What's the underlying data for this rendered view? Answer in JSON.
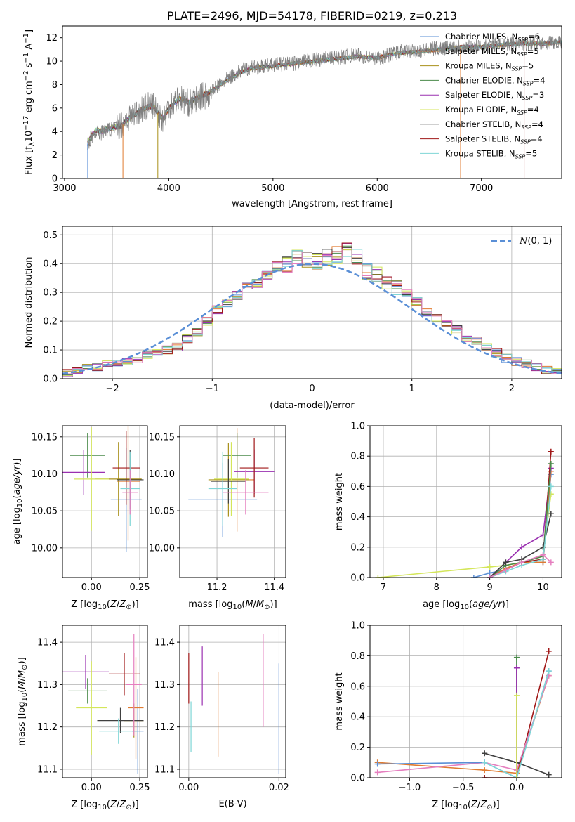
{
  "chart_data": [
    {
      "id": "spectrum",
      "type": "line",
      "title": "PLATE=2496, MJD=54178, FIBERID=0219, z=0.213",
      "xlabel": "wavelength [Angstrom, rest frame]",
      "ylabel": "Flux [f_λ 10^-17 erg cm^-2 s^-1 A^-1]",
      "ylabel_parts": [
        "Flux [f",
        "λ",
        "10",
        "−17",
        " erg cm",
        "−2",
        " s",
        "−1",
        " A",
        "−1",
        "]"
      ],
      "xlim": [
        2980,
        7770
      ],
      "ylim": [
        0,
        13
      ],
      "xticks": [
        3000,
        4000,
        5000,
        6000,
        7000
      ],
      "yticks": [
        0,
        2,
        4,
        6,
        8,
        10,
        12
      ],
      "legend_position": "upper-right",
      "series": [
        {
          "name": "Chabrier MILES",
          "nssp": "6",
          "color": "#5a8fd6"
        },
        {
          "name": "Salpeter MILES",
          "nssp": "5",
          "color": "#e07b30"
        },
        {
          "name": "Kroupa MILES",
          "nssp": "5",
          "color": "#a8901a"
        },
        {
          "name": "Chabrier ELODIE",
          "nssp": "4",
          "color": "#4a8a4a"
        },
        {
          "name": "Salpeter ELODIE",
          "nssp": "3",
          "color": "#9a30b0"
        },
        {
          "name": "Kroupa ELODIE",
          "nssp": "4",
          "color": "#d4e65a"
        },
        {
          "name": "Chabrier STELIB",
          "nssp": "4",
          "color": "#404040"
        },
        {
          "name": "Salpeter STELIB",
          "nssp": "4",
          "color": "#a01818"
        },
        {
          "name": "Kroupa STELIB",
          "nssp": "5",
          "color": "#7fd6d6"
        }
      ],
      "data_series": {
        "name": "data",
        "color": "#808080",
        "x": [
          3220,
          3250,
          3300,
          3350,
          3400,
          3450,
          3500,
          3550,
          3600,
          3650,
          3700,
          3750,
          3800,
          3850,
          3900,
          3950,
          4000,
          4100,
          4200,
          4300,
          4400,
          4500,
          4600,
          4700,
          4800,
          4900,
          5000,
          5200,
          5400,
          5600,
          5800,
          6000,
          6200,
          6400,
          6600,
          6800,
          7000,
          7200,
          7400,
          7600,
          7750
        ],
        "y": [
          2.8,
          3.4,
          4.0,
          3.9,
          4.1,
          4.2,
          4.4,
          4.6,
          5.1,
          5.4,
          5.7,
          6.0,
          6.2,
          6.3,
          5.6,
          5.0,
          6.2,
          6.9,
          6.4,
          6.9,
          7.3,
          8.1,
          8.7,
          9.2,
          9.5,
          9.5,
          9.7,
          9.8,
          10.1,
          10.3,
          10.5,
          10.2,
          10.8,
          10.9,
          11.1,
          11.3,
          11.2,
          11.5,
          11.5,
          11.6,
          11.6
        ]
      },
      "model_series": {
        "x": [
          3220,
          3250,
          3300,
          3350,
          3400,
          3450,
          3500,
          3550,
          3600,
          3650,
          3700,
          3750,
          3800,
          3850,
          3900,
          3950,
          4000,
          4100,
          4200,
          4300,
          4400,
          4500,
          4600,
          4700,
          4800,
          4900,
          5000,
          5200,
          5400,
          5600,
          5800,
          6000,
          6200,
          6400,
          6600,
          6800,
          7000,
          7200,
          7400,
          7600,
          7750
        ],
        "y": [
          3.0,
          3.5,
          4.1,
          4.0,
          4.2,
          4.3,
          4.4,
          4.5,
          5.0,
          5.3,
          5.6,
          5.9,
          6.1,
          6.2,
          5.5,
          5.1,
          6.0,
          6.8,
          6.5,
          7.0,
          7.4,
          8.0,
          8.6,
          9.1,
          9.4,
          9.5,
          9.6,
          9.8,
          10.0,
          10.2,
          10.4,
          10.3,
          10.7,
          10.8,
          11.0,
          11.2,
          11.2,
          11.4,
          11.5,
          11.5,
          11.6
        ]
      }
    },
    {
      "id": "residuals",
      "type": "histogram",
      "xlabel": "(data-model)/error",
      "ylabel": "Normed distribution",
      "xlim": [
        -2.5,
        2.5
      ],
      "ylim": [
        0,
        0.53
      ],
      "xticks": [
        -2,
        -1,
        0,
        1,
        2
      ],
      "yticks": [
        0.0,
        0.1,
        0.2,
        0.3,
        0.4,
        0.5
      ],
      "legend": "N(0,1)",
      "legend_position": "upper-right",
      "reference_curve": {
        "name": "N(0,1)",
        "color": "#5a8fd6",
        "style": "dashed"
      },
      "bin_edges": [
        -2.5,
        -2.4,
        -2.3,
        -2.2,
        -2.1,
        -2.0,
        -1.9,
        -1.8,
        -1.7,
        -1.6,
        -1.5,
        -1.4,
        -1.3,
        -1.2,
        -1.1,
        -1.0,
        -0.9,
        -0.8,
        -0.7,
        -0.6,
        -0.5,
        -0.4,
        -0.3,
        -0.2,
        -0.1,
        0.0,
        0.1,
        0.2,
        0.3,
        0.4,
        0.5,
        0.6,
        0.7,
        0.8,
        0.9,
        1.0,
        1.1,
        1.2,
        1.3,
        1.4,
        1.5,
        1.6,
        1.7,
        1.8,
        1.9,
        2.0,
        2.1,
        2.2,
        2.3,
        2.4,
        2.5
      ],
      "counts": [
        0.02,
        0.03,
        0.04,
        0.04,
        0.05,
        0.05,
        0.06,
        0.06,
        0.08,
        0.09,
        0.1,
        0.11,
        0.14,
        0.16,
        0.2,
        0.24,
        0.26,
        0.29,
        0.32,
        0.33,
        0.36,
        0.38,
        0.4,
        0.42,
        0.41,
        0.41,
        0.42,
        0.43,
        0.45,
        0.42,
        0.37,
        0.36,
        0.34,
        0.32,
        0.3,
        0.27,
        0.23,
        0.21,
        0.19,
        0.17,
        0.14,
        0.13,
        0.11,
        0.09,
        0.07,
        0.06,
        0.05,
        0.04,
        0.03,
        0.03
      ],
      "series_colors": [
        "#5a8fd6",
        "#e07b30",
        "#a8901a",
        "#4a8a4a",
        "#9a30b0",
        "#d4e65a",
        "#404040",
        "#a01818",
        "#7fd6d6",
        "#e57fbf"
      ]
    },
    {
      "id": "age-vs-z",
      "type": "scatter",
      "xlabel": "Z [log10(Z/Z⊙)]",
      "ylabel": "age  [log10(age/yr)]",
      "xlim": [
        -0.15,
        0.29
      ],
      "ylim": [
        9.96,
        10.165
      ],
      "xticks": [
        0.0,
        0.25
      ],
      "yticks": [
        10.0,
        10.05,
        10.1,
        10.15
      ],
      "points": [
        {
          "x": 0.18,
          "y": 10.065,
          "xerr": 0.08,
          "yerr": 0.07,
          "color": "#5a8fd6"
        },
        {
          "x": 0.19,
          "y": 10.09,
          "xerr": 0.06,
          "yerr": 0.08,
          "color": "#e07b30"
        },
        {
          "x": 0.14,
          "y": 10.093,
          "xerr": 0.12,
          "yerr": 0.05,
          "color": "#a8901a"
        },
        {
          "x": -0.02,
          "y": 10.125,
          "xerr": 0.09,
          "yerr": 0.03,
          "color": "#4a8a4a"
        },
        {
          "x": -0.04,
          "y": 10.102,
          "xerr": 0.11,
          "yerr": 0.03,
          "color": "#9a30b0"
        },
        {
          "x": 0.0,
          "y": 10.093,
          "xerr": 0.09,
          "yerr": 0.07,
          "color": "#d4e65a"
        },
        {
          "x": 0.2,
          "y": 10.092,
          "xerr": 0.07,
          "yerr": 0.04,
          "color": "#404040"
        },
        {
          "x": 0.18,
          "y": 10.108,
          "xerr": 0.07,
          "yerr": 0.05,
          "color": "#a01818"
        },
        {
          "x": 0.2,
          "y": 10.08,
          "xerr": 0.05,
          "yerr": 0.05,
          "color": "#7fd6d6"
        },
        {
          "x": 0.2,
          "y": 10.075,
          "xerr": 0.04,
          "yerr": 0.03,
          "color": "#e57fbf"
        }
      ]
    },
    {
      "id": "age-vs-mass",
      "type": "scatter",
      "xlabel": "mass [log10(M/M⊙)]",
      "ylabel": "",
      "xlim": [
        11.07,
        11.44
      ],
      "ylim": [
        9.96,
        10.165
      ],
      "xticks": [
        11.2,
        11.4
      ],
      "yticks": [
        10.0,
        10.05,
        10.1,
        10.15
      ],
      "points": [
        {
          "x": 11.22,
          "y": 10.065,
          "xerr": 0.12,
          "yerr": 0.05,
          "color": "#5a8fd6"
        },
        {
          "x": 11.27,
          "y": 10.092,
          "xerr": 0.06,
          "yerr": 0.07,
          "color": "#e07b30"
        },
        {
          "x": 11.24,
          "y": 10.092,
          "xerr": 0.07,
          "yerr": 0.05,
          "color": "#a8901a"
        },
        {
          "x": 11.27,
          "y": 10.125,
          "xerr": 0.05,
          "yerr": 0.03,
          "color": "#4a8a4a"
        },
        {
          "x": 11.33,
          "y": 10.103,
          "xerr": 0.07,
          "yerr": 0.03,
          "color": "#9a30b0"
        },
        {
          "x": 11.25,
          "y": 10.093,
          "xerr": 0.06,
          "yerr": 0.05,
          "color": "#d4e65a"
        },
        {
          "x": 11.24,
          "y": 10.09,
          "xerr": 0.06,
          "yerr": 0.03,
          "color": "#404040"
        },
        {
          "x": 11.33,
          "y": 10.108,
          "xerr": 0.05,
          "yerr": 0.04,
          "color": "#a01818"
        },
        {
          "x": 11.22,
          "y": 10.08,
          "xerr": 0.05,
          "yerr": 0.05,
          "color": "#7fd6d6"
        },
        {
          "x": 11.3,
          "y": 10.075,
          "xerr": 0.08,
          "yerr": 0.03,
          "color": "#e57fbf"
        }
      ]
    },
    {
      "id": "massweight-vs-age",
      "type": "line",
      "xlabel": "age  [log10(age/yr)]",
      "ylabel": "mass weight",
      "xlim": [
        6.75,
        10.35
      ],
      "ylim": [
        0,
        1.0
      ],
      "xticks": [
        7,
        8,
        9,
        10
      ],
      "yticks": [
        0.0,
        0.2,
        0.4,
        0.6,
        0.8,
        1.0
      ],
      "series": [
        {
          "color": "#d4e65a",
          "x": [
            6.9,
            9.0,
            9.3,
            9.6,
            10.0,
            10.15
          ],
          "y": [
            0.0,
            0.07,
            0.08,
            0.1,
            0.14,
            0.55
          ]
        },
        {
          "color": "#5a8fd6",
          "x": [
            8.7,
            9.0,
            9.3,
            9.6,
            10.0,
            10.15
          ],
          "y": [
            0.0,
            0.03,
            0.05,
            0.1,
            0.1,
            0.68
          ]
        },
        {
          "color": "#e07b30",
          "x": [
            9.0,
            9.3,
            9.6,
            10.0,
            10.15
          ],
          "y": [
            0.0,
            0.06,
            0.1,
            0.1,
            0.7
          ]
        },
        {
          "color": "#9a30b0",
          "x": [
            9.0,
            9.3,
            9.6,
            10.0,
            10.15
          ],
          "y": [
            0.0,
            0.1,
            0.2,
            0.28,
            0.72
          ]
        },
        {
          "color": "#a01818",
          "x": [
            9.0,
            9.3,
            9.6,
            10.0,
            10.15
          ],
          "y": [
            0.0,
            0.05,
            0.1,
            0.12,
            0.83
          ]
        },
        {
          "color": "#4a8a4a",
          "x": [
            9.0,
            9.3,
            9.6,
            10.0,
            10.15
          ],
          "y": [
            0.0,
            0.08,
            0.1,
            0.14,
            0.75
          ]
        },
        {
          "color": "#404040",
          "x": [
            9.0,
            9.3,
            9.6,
            10.0,
            10.15
          ],
          "y": [
            0.0,
            0.1,
            0.12,
            0.2,
            0.42
          ]
        },
        {
          "color": "#7fd6d6",
          "x": [
            9.0,
            9.3,
            9.6,
            10.0,
            10.15
          ],
          "y": [
            0.0,
            0.04,
            0.08,
            0.12,
            0.6
          ]
        },
        {
          "color": "#e57fbf",
          "x": [
            9.0,
            9.3,
            9.6,
            10.0,
            10.15
          ],
          "y": [
            0.0,
            0.05,
            0.1,
            0.15,
            0.1
          ]
        }
      ]
    },
    {
      "id": "mass-vs-z",
      "type": "scatter",
      "xlabel": "Z [log10(Z/Z⊙)]",
      "ylabel": "mass [log10(M/M⊙)]",
      "xlim": [
        -0.15,
        0.29
      ],
      "ylim": [
        11.08,
        11.44
      ],
      "xticks": [
        0.0,
        0.25
      ],
      "yticks": [
        11.1,
        11.2,
        11.3,
        11.4
      ],
      "points": [
        {
          "x": 0.24,
          "y": 11.19,
          "xerr": 0.03,
          "yerr": 0.1,
          "color": "#5a8fd6"
        },
        {
          "x": 0.23,
          "y": 11.245,
          "xerr": 0.04,
          "yerr": 0.12,
          "color": "#e07b30"
        },
        {
          "x": 0.22,
          "y": 11.215,
          "xerr": 0.05,
          "yerr": 0.04,
          "color": "#a8901a"
        },
        {
          "x": -0.02,
          "y": 11.285,
          "xerr": 0.1,
          "yerr": 0.03,
          "color": "#4a8a4a"
        },
        {
          "x": -0.03,
          "y": 11.33,
          "xerr": 0.12,
          "yerr": 0.04,
          "color": "#9a30b0"
        },
        {
          "x": 0.0,
          "y": 11.245,
          "xerr": 0.08,
          "yerr": 0.11,
          "color": "#d4e65a"
        },
        {
          "x": 0.15,
          "y": 11.215,
          "xerr": 0.12,
          "yerr": 0.03,
          "color": "#404040"
        },
        {
          "x": 0.17,
          "y": 11.325,
          "xerr": 0.08,
          "yerr": 0.05,
          "color": "#a01818"
        },
        {
          "x": 0.14,
          "y": 11.19,
          "xerr": 0.1,
          "yerr": 0.03,
          "color": "#7fd6d6"
        },
        {
          "x": 0.22,
          "y": 11.3,
          "xerr": 0.04,
          "yerr": 0.12,
          "color": "#e57fbf"
        }
      ]
    },
    {
      "id": "mass-vs-ebv",
      "type": "errorbar",
      "xlabel": "E(B-V)",
      "ylabel": "",
      "xlim": [
        -0.002,
        0.0215
      ],
      "ylim": [
        11.08,
        11.44
      ],
      "xticks": [
        0.0,
        0.02
      ],
      "yticks": [
        11.1,
        11.2,
        11.3,
        11.4
      ],
      "points": [
        {
          "x": 0.0,
          "y": 11.315,
          "yerr": 0.06,
          "color": "#a01818"
        },
        {
          "x": 0.0005,
          "y": 11.2,
          "yerr": 0.06,
          "color": "#7fd6d6"
        },
        {
          "x": 0.003,
          "y": 11.32,
          "yerr": 0.07,
          "color": "#9a30b0"
        },
        {
          "x": 0.0065,
          "y": 11.23,
          "yerr": 0.1,
          "color": "#e07b30"
        },
        {
          "x": 0.0165,
          "y": 11.31,
          "yerr": 0.11,
          "color": "#e57fbf"
        },
        {
          "x": 0.02,
          "y": 11.22,
          "yerr": 0.13,
          "color": "#5a8fd6"
        }
      ]
    },
    {
      "id": "massweight-vs-z",
      "type": "line",
      "xlabel": "Z [log10(Z/Z⊙)]",
      "ylabel": "mass weight",
      "xlim": [
        -1.37,
        0.42
      ],
      "ylim": [
        0,
        1.0
      ],
      "xticks": [
        -1.0,
        -0.5,
        0.0
      ],
      "yticks": [
        0.0,
        0.2,
        0.4,
        0.6,
        0.8,
        1.0
      ],
      "series": [
        {
          "color": "#e07b30",
          "x": [
            -1.3,
            -0.3,
            0.0,
            0.3
          ],
          "y": [
            0.1,
            0.05,
            0.03,
            0.67
          ]
        },
        {
          "color": "#a01818",
          "x": [
            -0.3,
            0.0,
            0.3
          ],
          "y": [
            0.0,
            0.0,
            0.83
          ]
        },
        {
          "color": "#e57fbf",
          "x": [
            -1.3,
            -0.3,
            0.0,
            0.3
          ],
          "y": [
            0.035,
            0.1,
            0.05,
            0.67
          ]
        },
        {
          "color": "#5a8fd6",
          "x": [
            -1.3,
            -0.3,
            0.0,
            0.3
          ],
          "y": [
            0.09,
            0.1,
            0.0,
            0.7
          ]
        },
        {
          "color": "#404040",
          "x": [
            -0.3,
            0.0,
            0.3
          ],
          "y": [
            0.16,
            0.1,
            0.02
          ]
        },
        {
          "color": "#7fd6d6",
          "x": [
            -0.3,
            0.0,
            0.3
          ],
          "y": [
            0.1,
            0.0,
            0.7
          ]
        },
        {
          "color": "#4a8a4a",
          "x": [
            0.0,
            0.0
          ],
          "y": [
            0.0,
            0.79
          ]
        },
        {
          "color": "#9a30b0",
          "x": [
            0.0,
            0.0
          ],
          "y": [
            0.0,
            0.72
          ]
        },
        {
          "color": "#d4e65a",
          "x": [
            0.0,
            0.0
          ],
          "y": [
            0.0,
            0.54
          ]
        }
      ]
    }
  ]
}
